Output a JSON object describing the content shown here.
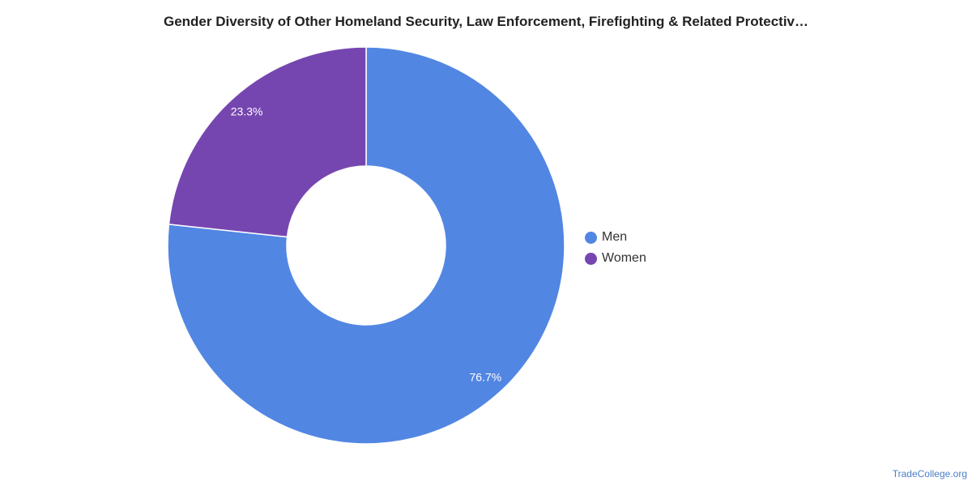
{
  "header": {
    "title": "Gender Diversity of Other Homeland Security, Law Enforcement, Firefighting & Related Protectiv…"
  },
  "footer": {
    "credit": "TradeCollege.org"
  },
  "chart_data": {
    "type": "pie",
    "donut": true,
    "title": "Gender Diversity of Other Homeland Security, Law Enforcement, Firefighting & Related Protectiv…",
    "categories": [
      "Men",
      "Women"
    ],
    "values": [
      76.7,
      23.3
    ],
    "labels": [
      "76.7%",
      "23.3%"
    ],
    "colors": [
      "#5286e3",
      "#7646b0"
    ],
    "legend_position": "right"
  }
}
